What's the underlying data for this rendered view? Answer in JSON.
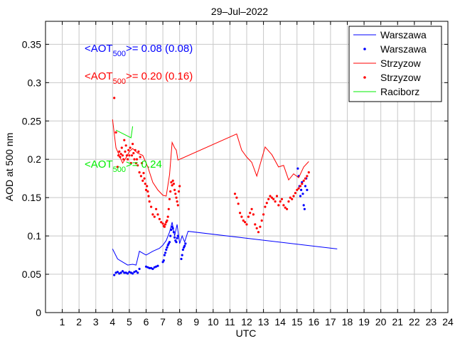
{
  "chart_data": {
    "type": "line",
    "title": "29–Jul–2022",
    "xlabel": "UTC",
    "ylabel": "AOD at 500 nm",
    "xlim": [
      0,
      24
    ],
    "ylim": [
      0,
      0.38
    ],
    "xticks": [
      1,
      2,
      3,
      4,
      5,
      6,
      7,
      8,
      9,
      10,
      11,
      12,
      13,
      14,
      15,
      16,
      17,
      18,
      19,
      20,
      21,
      22,
      23,
      24
    ],
    "yticks": [
      0,
      0.05,
      0.1,
      0.15,
      0.2,
      0.25,
      0.3,
      0.35
    ],
    "ytick_labels": [
      "0",
      "0.05",
      "0.1",
      "0.15",
      "0.2",
      "0.25",
      "0.3",
      "0.35"
    ],
    "grid": true,
    "legend_position": "top-right",
    "annotations": [
      {
        "prefix": "<AOT",
        "sub": "500",
        "suffix": ">= 0.08 (0.08)",
        "color": "#0000ff"
      },
      {
        "prefix": "<AOT",
        "sub": "500",
        "suffix": ">= 0.20 (0.16)",
        "color": "#ff0000"
      },
      {
        "prefix": "<AOT",
        "sub": "500",
        "suffix": ">= 0.24",
        "color": "#00ee00"
      }
    ],
    "series": [
      {
        "name": "Warszawa",
        "style": "line",
        "color": "#0000ff",
        "x": [
          4.0,
          4.3,
          4.6,
          4.9,
          5.2,
          5.4,
          5.6,
          6.0,
          6.4,
          6.8,
          7.0,
          7.2,
          7.4,
          7.55,
          7.7,
          7.85,
          8.0,
          8.15,
          8.3,
          8.5,
          17.4
        ],
        "y": [
          0.083,
          0.07,
          0.066,
          0.062,
          0.063,
          0.062,
          0.08,
          0.075,
          0.08,
          0.084,
          0.088,
          0.094,
          0.105,
          0.118,
          0.1,
          0.115,
          0.09,
          0.1,
          0.092,
          0.106,
          0.083
        ]
      },
      {
        "name": "Warszawa",
        "style": "points",
        "color": "#0000ff",
        "x": [
          4.1,
          4.2,
          4.3,
          4.4,
          4.5,
          4.6,
          4.7,
          4.8,
          4.9,
          5.0,
          5.1,
          5.2,
          5.3,
          5.4,
          5.5,
          5.6,
          6.0,
          6.1,
          6.2,
          6.3,
          6.4,
          6.5,
          6.6,
          6.7,
          7.0,
          7.05,
          7.1,
          7.15,
          7.2,
          7.25,
          7.3,
          7.35,
          7.4,
          7.45,
          7.5,
          7.55,
          7.6,
          7.65,
          7.7,
          7.75,
          7.8,
          7.85,
          7.9,
          8.1,
          8.15,
          8.2,
          8.25,
          8.3,
          8.35,
          15.05,
          15.1,
          15.15,
          15.2,
          15.25,
          15.3,
          15.35,
          15.4,
          15.45,
          15.5,
          15.55,
          15.6
        ],
        "y": [
          0.049,
          0.052,
          0.053,
          0.051,
          0.052,
          0.054,
          0.052,
          0.052,
          0.051,
          0.053,
          0.052,
          0.051,
          0.053,
          0.054,
          0.052,
          0.057,
          0.06,
          0.059,
          0.058,
          0.058,
          0.057,
          0.059,
          0.06,
          0.061,
          0.066,
          0.068,
          0.075,
          0.078,
          0.082,
          0.085,
          0.088,
          0.09,
          0.092,
          0.1,
          0.108,
          0.112,
          0.11,
          0.105,
          0.098,
          0.094,
          0.092,
          0.097,
          0.1,
          0.07,
          0.075,
          0.082,
          0.085,
          0.087,
          0.09,
          0.188,
          0.178,
          0.165,
          0.152,
          0.16,
          0.17,
          0.155,
          0.14,
          0.135,
          0.165,
          0.175,
          0.16
        ]
      },
      {
        "name": "Strzyzow",
        "style": "line",
        "color": "#ff0000",
        "x": [
          4.0,
          4.2,
          4.4,
          4.6,
          4.8,
          5.0,
          5.2,
          5.5,
          5.8,
          6.1,
          6.4,
          6.7,
          7.0,
          7.2,
          7.4,
          7.55,
          7.7,
          7.8,
          7.9,
          11.4,
          11.7,
          12.0,
          12.3,
          12.6,
          13.1,
          13.5,
          13.9,
          14.2,
          14.5,
          14.8,
          15.1,
          15.4,
          15.7
        ],
        "y": [
          0.252,
          0.215,
          0.205,
          0.195,
          0.202,
          0.21,
          0.214,
          0.208,
          0.205,
          0.19,
          0.17,
          0.16,
          0.153,
          0.152,
          0.18,
          0.222,
          0.215,
          0.212,
          0.199,
          0.233,
          0.212,
          0.203,
          0.196,
          0.178,
          0.216,
          0.206,
          0.19,
          0.192,
          0.173,
          0.181,
          0.176,
          0.19,
          0.197
        ]
      },
      {
        "name": "Strzyzow",
        "style": "points",
        "color": "#ff0000",
        "x": [
          4.1,
          4.2,
          4.3,
          4.35,
          4.4,
          4.45,
          4.5,
          4.55,
          4.6,
          4.65,
          4.7,
          4.75,
          4.8,
          4.85,
          4.9,
          4.95,
          5.0,
          5.05,
          5.1,
          5.15,
          5.2,
          5.25,
          5.3,
          5.35,
          5.4,
          5.45,
          5.5,
          5.55,
          5.6,
          5.65,
          5.7,
          5.75,
          5.8,
          5.85,
          5.9,
          5.95,
          6.0,
          6.05,
          6.1,
          6.15,
          6.2,
          6.3,
          6.4,
          6.5,
          6.6,
          6.7,
          6.8,
          6.9,
          7.0,
          7.05,
          7.1,
          7.15,
          7.2,
          7.25,
          7.3,
          7.35,
          7.4,
          7.45,
          7.5,
          7.55,
          7.6,
          7.65,
          7.7,
          7.75,
          7.8,
          7.85,
          7.9,
          7.95,
          8.0,
          11.3,
          11.4,
          11.5,
          11.6,
          11.7,
          11.8,
          11.9,
          12.0,
          12.1,
          12.2,
          12.3,
          12.4,
          12.5,
          12.6,
          12.7,
          12.8,
          12.9,
          13.0,
          13.1,
          13.2,
          13.3,
          13.4,
          13.5,
          13.6,
          13.7,
          13.8,
          13.9,
          14.0,
          14.1,
          14.2,
          14.3,
          14.4,
          14.5,
          14.6,
          14.7,
          14.8,
          14.9,
          15.0,
          15.1,
          15.2,
          15.3,
          15.4,
          15.5,
          15.6,
          15.7
        ],
        "y": [
          0.28,
          0.235,
          0.19,
          0.205,
          0.21,
          0.203,
          0.207,
          0.215,
          0.205,
          0.2,
          0.225,
          0.21,
          0.218,
          0.205,
          0.2,
          0.212,
          0.205,
          0.215,
          0.195,
          0.205,
          0.22,
          0.208,
          0.2,
          0.212,
          0.195,
          0.2,
          0.192,
          0.21,
          0.183,
          0.203,
          0.178,
          0.195,
          0.172,
          0.182,
          0.175,
          0.168,
          0.16,
          0.165,
          0.158,
          0.152,
          0.145,
          0.138,
          0.128,
          0.125,
          0.135,
          0.128,
          0.122,
          0.118,
          0.116,
          0.113,
          0.112,
          0.115,
          0.118,
          0.12,
          0.125,
          0.135,
          0.148,
          0.158,
          0.17,
          0.166,
          0.172,
          0.168,
          0.16,
          0.155,
          0.15,
          0.145,
          0.14,
          0.158,
          0.165,
          0.155,
          0.15,
          0.142,
          0.13,
          0.125,
          0.12,
          0.118,
          0.115,
          0.125,
          0.13,
          0.135,
          0.128,
          0.115,
          0.11,
          0.105,
          0.112,
          0.12,
          0.128,
          0.138,
          0.143,
          0.148,
          0.152,
          0.15,
          0.148,
          0.145,
          0.152,
          0.14,
          0.145,
          0.148,
          0.14,
          0.137,
          0.135,
          0.145,
          0.15,
          0.148,
          0.152,
          0.156,
          0.16,
          0.162,
          0.165,
          0.168,
          0.172,
          0.175,
          0.178,
          0.183
        ]
      },
      {
        "name": "Raciborz",
        "style": "line",
        "color": "#00ee00",
        "x": [
          4.2,
          5.1,
          5.2
        ],
        "y": [
          0.238,
          0.228,
          0.243
        ]
      }
    ]
  }
}
